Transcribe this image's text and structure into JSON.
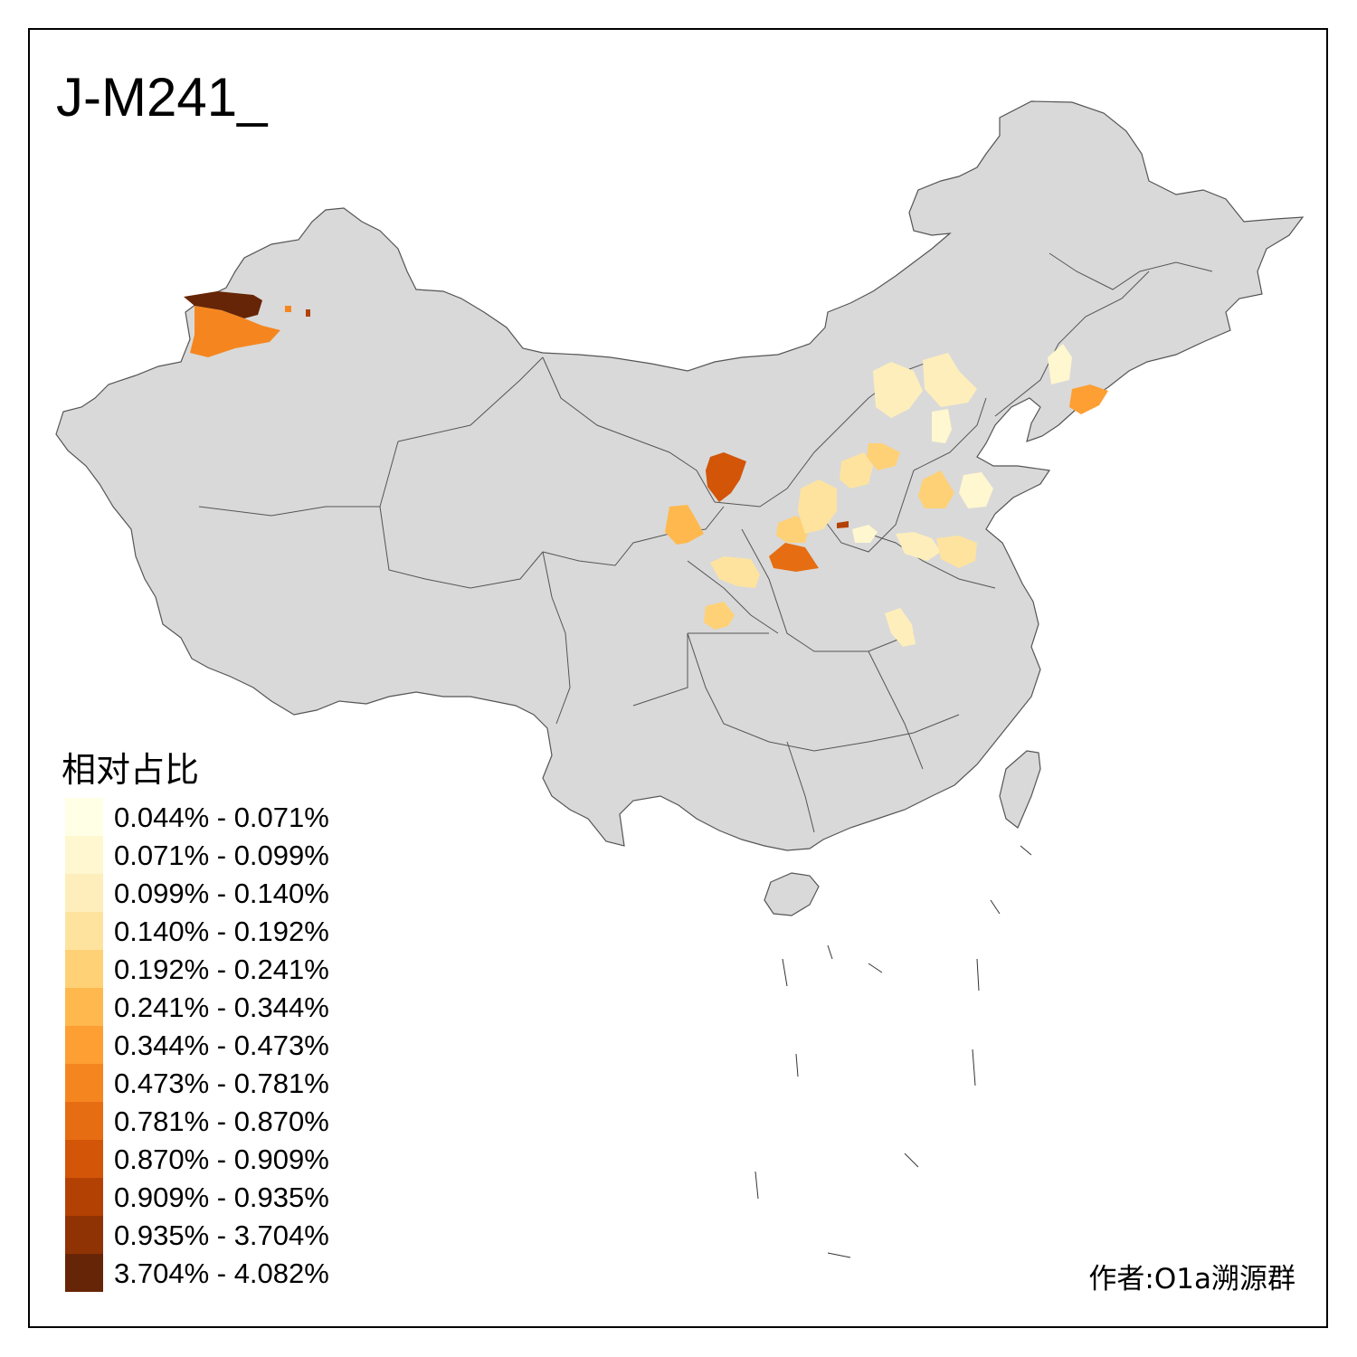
{
  "map": {
    "title": "J-M241_",
    "legend_title": "相对占比",
    "author": "作者:O1a溯源群",
    "base_color": "#d9d9d9",
    "border_color": "#555555",
    "legend": [
      {
        "label": "0.044% - 0.071%",
        "color": "#ffffe5"
      },
      {
        "label": "0.071% - 0.099%",
        "color": "#fff7cf"
      },
      {
        "label": "0.099% - 0.140%",
        "color": "#feeebb"
      },
      {
        "label": "0.140% - 0.192%",
        "color": "#fee39f"
      },
      {
        "label": "0.192% - 0.241%",
        "color": "#fed176"
      },
      {
        "label": "0.241% - 0.344%",
        "color": "#feb84d"
      },
      {
        "label": "0.344% - 0.473%",
        "color": "#fd9f33"
      },
      {
        "label": "0.473% - 0.781%",
        "color": "#f5861f"
      },
      {
        "label": "0.781% - 0.870%",
        "color": "#e66d12"
      },
      {
        "label": "0.870% - 0.909%",
        "color": "#d25508"
      },
      {
        "label": "0.909% - 0.935%",
        "color": "#b44104"
      },
      {
        "label": "0.935% - 3.704%",
        "color": "#8f3204"
      },
      {
        "label": "3.704% - 4.082%",
        "color": "#662506"
      }
    ]
  }
}
